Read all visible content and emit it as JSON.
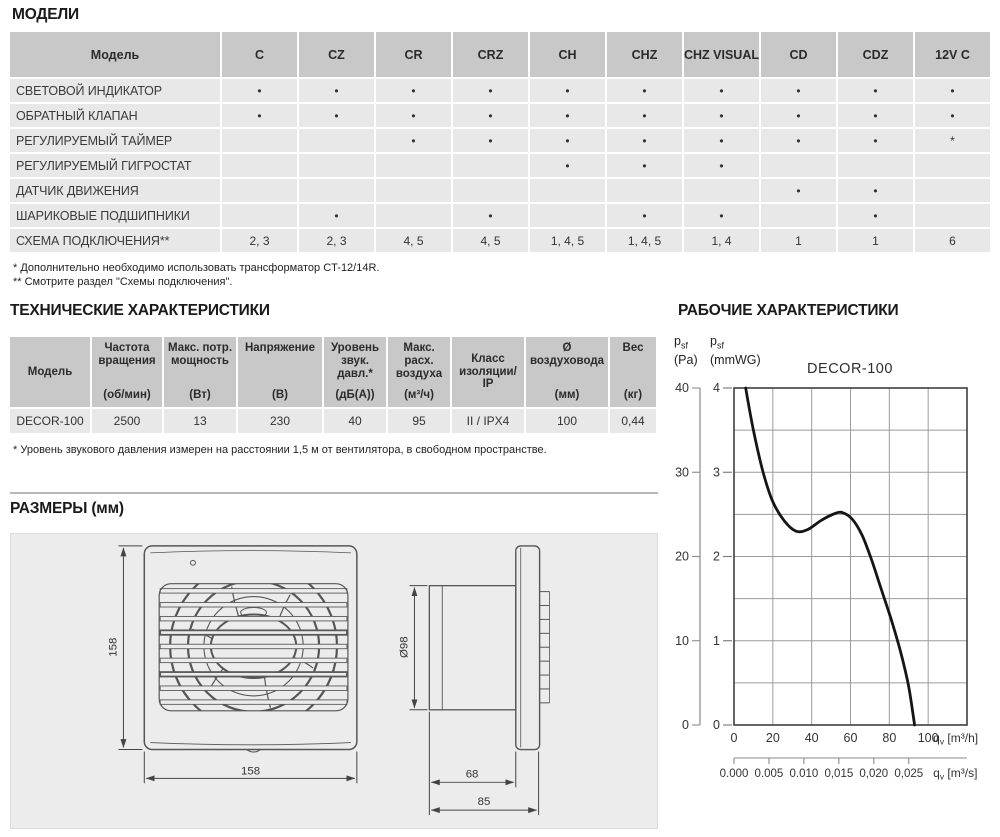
{
  "models": {
    "title": "МОДЕЛИ",
    "table": {
      "corner_header": "Модель",
      "columns": [
        "C",
        "CZ",
        "CR",
        "CRZ",
        "CH",
        "CHZ",
        "CHZ VISUAL",
        "CD",
        "CDZ",
        "12V C"
      ],
      "rows": [
        {
          "feature": "СВЕТОВОЙ ИНДИКАТОР",
          "cells": [
            "•",
            "•",
            "•",
            "•",
            "•",
            "•",
            "•",
            "•",
            "•",
            "•"
          ]
        },
        {
          "feature": "ОБРАТНЫЙ КЛАПАН",
          "cells": [
            "•",
            "•",
            "•",
            "•",
            "•",
            "•",
            "•",
            "•",
            "•",
            "•"
          ]
        },
        {
          "feature": "РЕГУЛИРУЕМЫЙ ТАЙМЕР",
          "cells": [
            "",
            "",
            "•",
            "•",
            "•",
            "•",
            "•",
            "•",
            "•",
            "*"
          ]
        },
        {
          "feature": "РЕГУЛИРУЕМЫЙ ГИГРОСТАТ",
          "cells": [
            "",
            "",
            "",
            "",
            "•",
            "•",
            "•",
            "",
            "",
            ""
          ]
        },
        {
          "feature": "ДАТЧИК ДВИЖЕНИЯ",
          "cells": [
            "",
            "",
            "",
            "",
            "",
            "",
            "",
            "•",
            "•",
            ""
          ]
        },
        {
          "feature": "ШАРИКОВЫЕ ПОДШИПНИКИ",
          "cells": [
            "",
            "•",
            "",
            "•",
            "",
            "•",
            "•",
            "",
            "•",
            ""
          ]
        },
        {
          "feature": "СХЕМА ПОДКЛЮЧЕНИЯ**",
          "cells": [
            "2, 3",
            "2, 3",
            "4, 5",
            "4, 5",
            "1, 4, 5",
            "1, 4, 5",
            "1, 4",
            "1",
            "1",
            "6"
          ]
        }
      ]
    },
    "footnotes": [
      "* Дополнительно необходимо использовать трансформатор CT-12/14R.",
      "** Смотрите раздел \"Схемы подключения\"."
    ]
  },
  "tech": {
    "title": "ТЕХНИЧЕСКИЕ ХАРАКТЕРИСТИКИ",
    "table": {
      "headers": [
        {
          "name": "Модель",
          "unit": ""
        },
        {
          "name": "Частота вращения",
          "unit": "(об/мин)"
        },
        {
          "name": "Макс. потр. мощность",
          "unit": "(Вт)"
        },
        {
          "name": "Напряжение",
          "unit": "(В)"
        },
        {
          "name": "Уровень звук. давл.*",
          "unit": "(дБ(А))"
        },
        {
          "name": "Макс. расх. воздуха",
          "unit": "(м³/ч)"
        },
        {
          "name": "Класс изоляции/ IP",
          "unit": ""
        },
        {
          "name": "Ø воздуховода",
          "unit": "(мм)"
        },
        {
          "name": "Вес",
          "unit": "(кг)"
        }
      ],
      "row": [
        "DECOR-100",
        "2500",
        "13",
        "230",
        "40",
        "95",
        "II / IPX4",
        "100",
        "0,44"
      ]
    },
    "footnote": "* Уровень звукового давления измерен на расстоянии 1,5 м от вентилятора, в свободном пространстве."
  },
  "dimensions": {
    "title": "РАЗМЕРЫ (мм)",
    "front_height": "158",
    "front_width": "158",
    "duct_diameter": "Ø98",
    "duct_depth": "68",
    "total_depth": "85"
  },
  "performance": {
    "title": "РАБОЧИЕ ХАРАКТЕРИСТИКИ"
  },
  "chart_data": {
    "type": "line",
    "title": "DECOR-100",
    "y_axis_pa": {
      "sym": "p",
      "sub": "sf",
      "unit": "(Pa)",
      "ticks": [
        40,
        30,
        20,
        10,
        0
      ],
      "max": 40
    },
    "y_axis_mmwg": {
      "sym": "p",
      "sub": "sf",
      "unit": "(mmWG)",
      "ticks": [
        4,
        3,
        2,
        1,
        0
      ]
    },
    "x_axis_m3h": {
      "sym": "q",
      "sub": "v",
      "unit": "[m³/h]",
      "ticks": [
        0,
        20,
        40,
        60,
        80,
        100
      ]
    },
    "x_axis_m3s": {
      "sym": "q",
      "sub": "v",
      "unit": "[m³/s]",
      "tick_labels": [
        "0.000",
        "0.005",
        "0.010",
        "0,015",
        "0,020",
        "0,025"
      ],
      "tick_positions_m3h": [
        0,
        18,
        36,
        54,
        72,
        90
      ]
    },
    "plot": {
      "x_max": 120,
      "x_grid_step": 20,
      "y_max_mmwg": 4,
      "y_grid_step": 0.5,
      "grid": true
    },
    "series": [
      {
        "name": "DECOR-100",
        "points_qv_m3h_vs_psf_mmwg": [
          [
            6,
            4.0
          ],
          [
            10,
            3.5
          ],
          [
            15,
            3.0
          ],
          [
            20,
            2.65
          ],
          [
            26,
            2.42
          ],
          [
            32,
            2.3
          ],
          [
            38,
            2.32
          ],
          [
            45,
            2.43
          ],
          [
            52,
            2.51
          ],
          [
            56,
            2.52
          ],
          [
            61,
            2.44
          ],
          [
            66,
            2.25
          ],
          [
            71,
            1.95
          ],
          [
            76,
            1.6
          ],
          [
            81,
            1.25
          ],
          [
            86,
            0.85
          ],
          [
            90,
            0.45
          ],
          [
            93,
            0.0
          ]
        ]
      }
    ]
  },
  "colors": {
    "table_header_bg": "#c8c8c8",
    "table_row_bg": "#e8e8e8",
    "dims_box_bg": "#ececec",
    "grid_line": "#9b9b9b",
    "curve": "#151515"
  }
}
